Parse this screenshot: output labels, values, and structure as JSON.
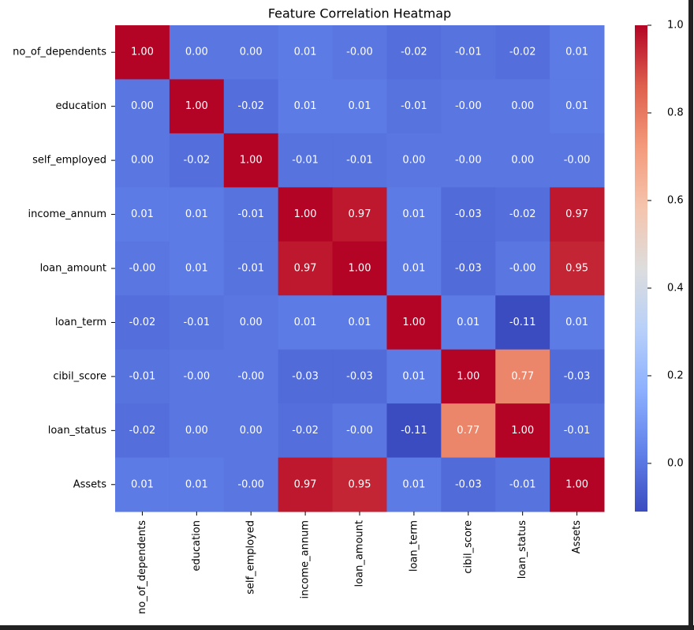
{
  "chart_data": {
    "type": "heatmap",
    "title": "Feature Correlation Heatmap",
    "categories": [
      "no_of_dependents",
      "education",
      "self_employed",
      "income_annum",
      "loan_amount",
      "loan_term",
      "cibil_score",
      "loan_status",
      "Assets"
    ],
    "values": [
      [
        1,
        0,
        0,
        0.01,
        -0.001,
        -0.02,
        -0.01,
        -0.02,
        0.01
      ],
      [
        0,
        1,
        -0.02,
        0.01,
        0.01,
        -0.01,
        -0.001,
        0,
        0.01
      ],
      [
        0,
        -0.02,
        1,
        -0.01,
        -0.01,
        0,
        -0.001,
        0,
        -0.001
      ],
      [
        0.01,
        0.01,
        -0.01,
        1,
        0.97,
        0.01,
        -0.03,
        -0.02,
        0.97
      ],
      [
        -0.001,
        0.01,
        -0.01,
        0.97,
        1,
        0.01,
        -0.03,
        -0.001,
        0.95
      ],
      [
        -0.02,
        -0.01,
        0,
        0.01,
        0.01,
        1,
        0.01,
        -0.11,
        0.01
      ],
      [
        -0.01,
        -0.001,
        -0.001,
        -0.03,
        -0.03,
        0.01,
        1,
        0.77,
        -0.03
      ],
      [
        -0.02,
        0,
        0,
        -0.02,
        -0.001,
        -0.11,
        0.77,
        1,
        -0.01
      ],
      [
        0.01,
        0.01,
        -0.001,
        0.97,
        0.95,
        0.01,
        -0.03,
        -0.01,
        1
      ]
    ],
    "value_labels": [
      [
        "1.00",
        "0.00",
        "0.00",
        "0.01",
        "-0.00",
        "-0.02",
        "-0.01",
        "-0.02",
        "0.01"
      ],
      [
        "0.00",
        "1.00",
        "-0.02",
        "0.01",
        "0.01",
        "-0.01",
        "-0.00",
        "0.00",
        "0.01"
      ],
      [
        "0.00",
        "-0.02",
        "1.00",
        "-0.01",
        "-0.01",
        "0.00",
        "-0.00",
        "0.00",
        "-0.00"
      ],
      [
        "0.01",
        "0.01",
        "-0.01",
        "1.00",
        "0.97",
        "0.01",
        "-0.03",
        "-0.02",
        "0.97"
      ],
      [
        "-0.00",
        "0.01",
        "-0.01",
        "0.97",
        "1.00",
        "0.01",
        "-0.03",
        "-0.00",
        "0.95"
      ],
      [
        "-0.02",
        "-0.01",
        "0.00",
        "0.01",
        "0.01",
        "1.00",
        "0.01",
        "-0.11",
        "0.01"
      ],
      [
        "-0.01",
        "-0.00",
        "-0.00",
        "-0.03",
        "-0.03",
        "0.01",
        "1.00",
        "0.77",
        "-0.03"
      ],
      [
        "-0.02",
        "0.00",
        "0.00",
        "-0.02",
        "-0.00",
        "-0.11",
        "0.77",
        "1.00",
        "-0.01"
      ],
      [
        "0.01",
        "0.01",
        "-0.00",
        "0.97",
        "0.95",
        "0.01",
        "-0.03",
        "-0.01",
        "1.00"
      ]
    ],
    "clim": [
      -0.11,
      1
    ],
    "cticks": [
      {
        "value": 0,
        "label": "0.0"
      },
      0.2,
      0.4,
      0.6,
      0.8,
      {
        "value": 1,
        "label": "1.0"
      }
    ],
    "colormap": [
      "#3b4cc0",
      "#6282ea",
      "#8db0fe",
      "#b8d0f9",
      "#dddddd",
      "#f5c4ad",
      "#f49a7b",
      "#de604d",
      "#b40426"
    ]
  }
}
